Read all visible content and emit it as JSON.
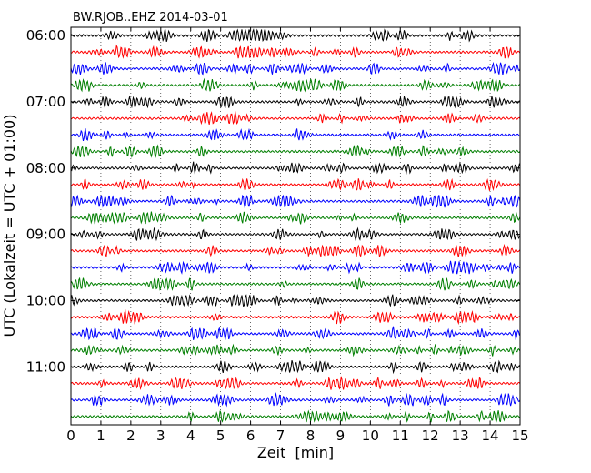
{
  "chart_data": {
    "type": "line",
    "title": "BW.RJOB..EHZ 2014-03-01",
    "xlabel": "Zeit  [min]",
    "ylabel": "UTC (Lokalzeit = UTC + 01:00)",
    "xlim": [
      0,
      15
    ],
    "x_ticks": [
      "0",
      "1",
      "2",
      "3",
      "4",
      "5",
      "6",
      "7",
      "8",
      "9",
      "10",
      "11",
      "12",
      "13",
      "14",
      "15"
    ],
    "y_tick_labels": [
      "06:00",
      "07:00",
      "08:00",
      "09:00",
      "10:00",
      "11:00"
    ],
    "trace_minutes": 15,
    "trace_count": 24,
    "color_cycle": [
      "#000000",
      "#ff0000",
      "#0000ff",
      "#007f00"
    ],
    "vertical_gridlines": "dotted",
    "series": [
      {
        "start": "06:00",
        "color": "#000000"
      },
      {
        "start": "06:15",
        "color": "#ff0000"
      },
      {
        "start": "06:30",
        "color": "#0000ff"
      },
      {
        "start": "06:45",
        "color": "#007f00"
      },
      {
        "start": "07:00",
        "color": "#000000"
      },
      {
        "start": "07:15",
        "color": "#ff0000"
      },
      {
        "start": "07:30",
        "color": "#0000ff"
      },
      {
        "start": "07:45",
        "color": "#007f00"
      },
      {
        "start": "08:00",
        "color": "#000000"
      },
      {
        "start": "08:15",
        "color": "#ff0000"
      },
      {
        "start": "08:30",
        "color": "#0000ff"
      },
      {
        "start": "08:45",
        "color": "#007f00"
      },
      {
        "start": "09:00",
        "color": "#000000"
      },
      {
        "start": "09:15",
        "color": "#ff0000"
      },
      {
        "start": "09:30",
        "color": "#0000ff"
      },
      {
        "start": "09:45",
        "color": "#007f00"
      },
      {
        "start": "10:00",
        "color": "#000000"
      },
      {
        "start": "10:15",
        "color": "#ff0000"
      },
      {
        "start": "10:30",
        "color": "#0000ff"
      },
      {
        "start": "10:45",
        "color": "#007f00"
      },
      {
        "start": "11:00",
        "color": "#000000"
      },
      {
        "start": "11:15",
        "color": "#ff0000"
      },
      {
        "start": "11:30",
        "color": "#0000ff"
      },
      {
        "start": "11:45",
        "color": "#007f00"
      }
    ]
  }
}
